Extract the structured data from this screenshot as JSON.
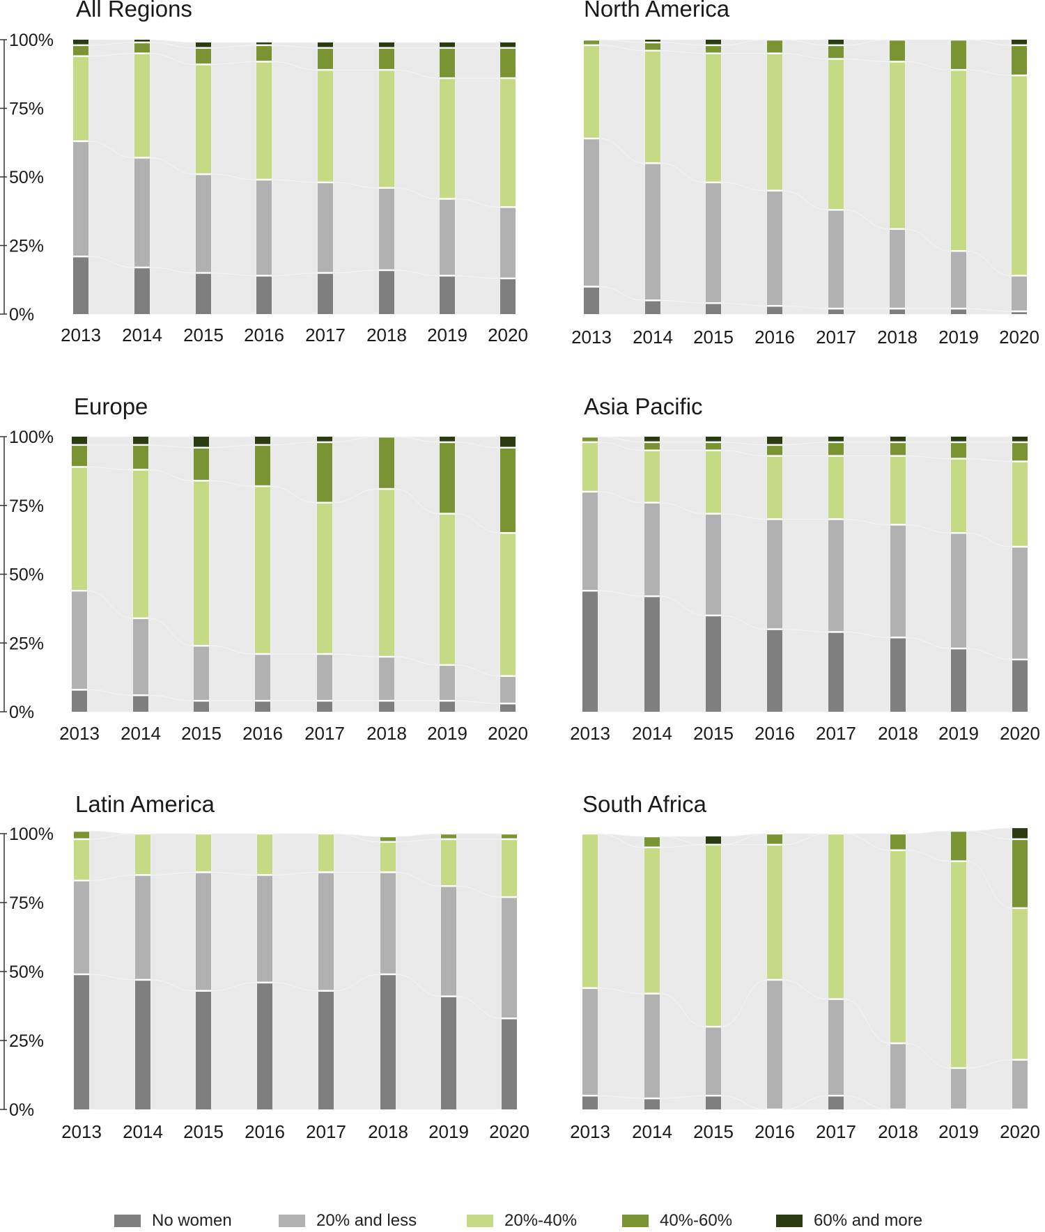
{
  "chart_data": {
    "type": "bar",
    "stacked": true,
    "ylim": [
      0,
      100
    ],
    "yticks": [
      "0%",
      "25%",
      "50%",
      "75%",
      "100%"
    ],
    "categories": [
      "2013",
      "2014",
      "2015",
      "2016",
      "2017",
      "2018",
      "2019",
      "2020"
    ],
    "segments": [
      "No women",
      "20% and less",
      "20%-40%",
      "40%-60%",
      "60% and more"
    ],
    "colors": {
      "No women": "#7f7f7f",
      "20% and less": "#b1b1b1",
      "20%-40%": "#c6d985",
      "40%-60%": "#7a9433",
      "60% and more": "#2b3d10",
      "flow": "#e6e6e6"
    },
    "panels": [
      {
        "title": "All Regions",
        "series": [
          {
            "name": "No women",
            "values": [
              21,
              17,
              15,
              14,
              15,
              16,
              14,
              13
            ]
          },
          {
            "name": "20% and less",
            "values": [
              42,
              40,
              36,
              35,
              33,
              30,
              28,
              26
            ]
          },
          {
            "name": "20%-40%",
            "values": [
              31,
              38,
              40,
              43,
              41,
              43,
              44,
              47
            ]
          },
          {
            "name": "40%-60%",
            "values": [
              4,
              4,
              6,
              6,
              8,
              8,
              11,
              11
            ]
          },
          {
            "name": "60% and more",
            "values": [
              2,
              1,
              2,
              1,
              2,
              2,
              2,
              2
            ]
          }
        ]
      },
      {
        "title": "North America",
        "series": [
          {
            "name": "No women",
            "values": [
              10,
              5,
              4,
              3,
              2,
              2,
              2,
              1
            ]
          },
          {
            "name": "20% and less",
            "values": [
              54,
              50,
              44,
              42,
              36,
              29,
              21,
              13
            ]
          },
          {
            "name": "20%-40%",
            "values": [
              34,
              41,
              47,
              50,
              55,
              61,
              66,
              73
            ]
          },
          {
            "name": "40%-60%",
            "values": [
              2,
              3,
              3,
              5,
              5,
              8,
              11,
              11
            ]
          },
          {
            "name": "60% and more",
            "values": [
              0,
              1,
              2,
              0,
              2,
              0,
              0,
              2
            ]
          }
        ]
      },
      {
        "title": "Europe",
        "series": [
          {
            "name": "No women",
            "values": [
              8,
              6,
              4,
              4,
              4,
              4,
              4,
              3
            ]
          },
          {
            "name": "20% and less",
            "values": [
              36,
              28,
              20,
              17,
              17,
              16,
              13,
              10
            ]
          },
          {
            "name": "20%-40%",
            "values": [
              45,
              54,
              60,
              61,
              55,
              61,
              55,
              52
            ]
          },
          {
            "name": "40%-60%",
            "values": [
              8,
              9,
              12,
              15,
              22,
              19,
              26,
              31
            ]
          },
          {
            "name": "60% and more",
            "values": [
              3,
              3,
              4,
              3,
              2,
              0,
              2,
              4
            ]
          }
        ]
      },
      {
        "title": "Asia Pacific",
        "series": [
          {
            "name": "No women",
            "values": [
              44,
              42,
              35,
              30,
              29,
              27,
              23,
              19
            ]
          },
          {
            "name": "20% and less",
            "values": [
              36,
              34,
              37,
              40,
              41,
              41,
              42,
              41
            ]
          },
          {
            "name": "20%-40%",
            "values": [
              18,
              19,
              23,
              23,
              23,
              25,
              27,
              31
            ]
          },
          {
            "name": "40%-60%",
            "values": [
              2,
              3,
              3,
              4,
              5,
              5,
              6,
              7
            ]
          },
          {
            "name": "60% and more",
            "values": [
              0,
              2,
              2,
              3,
              2,
              2,
              2,
              2
            ]
          }
        ]
      },
      {
        "title": "Latin America",
        "series": [
          {
            "name": "No women",
            "values": [
              49,
              47,
              43,
              46,
              43,
              49,
              41,
              33
            ]
          },
          {
            "name": "20% and less",
            "values": [
              34,
              38,
              43,
              39,
              43,
              37,
              40,
              44
            ]
          },
          {
            "name": "20%-40%",
            "values": [
              15,
              15,
              14,
              15,
              14,
              11,
              17,
              21
            ]
          },
          {
            "name": "40%-60%",
            "values": [
              3,
              0,
              0,
              0,
              0,
              2,
              2,
              2
            ]
          },
          {
            "name": "60% and more",
            "values": [
              0,
              0,
              0,
              0,
              0,
              0,
              0,
              0
            ]
          }
        ]
      },
      {
        "title": "South Africa",
        "series": [
          {
            "name": "No women",
            "values": [
              5,
              4,
              5,
              0,
              5,
              0,
              0,
              0
            ]
          },
          {
            "name": "20% and less",
            "values": [
              39,
              38,
              25,
              47,
              35,
              24,
              15,
              18
            ]
          },
          {
            "name": "20%-40%",
            "values": [
              56,
              53,
              66,
              49,
              60,
              70,
              75,
              55
            ]
          },
          {
            "name": "40%-60%",
            "values": [
              0,
              4,
              0,
              4,
              0,
              6,
              11,
              25
            ]
          },
          {
            "name": "60% and more",
            "values": [
              0,
              0,
              3,
              0,
              0,
              0,
              0,
              4
            ]
          }
        ]
      }
    ]
  }
}
